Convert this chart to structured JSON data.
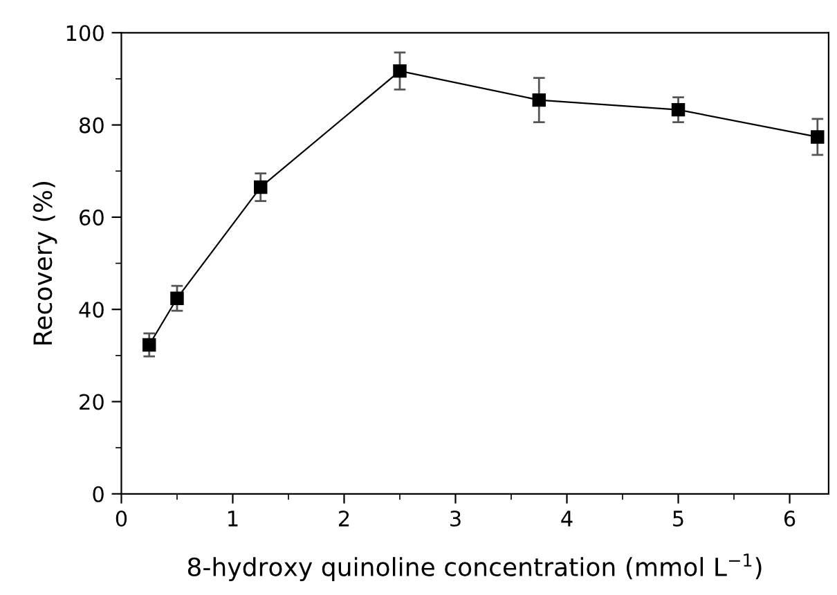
{
  "chart_data": {
    "type": "line",
    "xlabel": "8-hydroxy quinoline concentration (mmol L$^{−1}$)",
    "ylabel": "Recovery (%)",
    "x": [
      0.25,
      0.5,
      1.25,
      2.5,
      3.75,
      5,
      6.25
    ],
    "series": [
      {
        "color": "#000000",
        "values": [
          32.3,
          42.4,
          66.5,
          91.7,
          85.4,
          83.3,
          77.4
        ],
        "errors": [
          2.5,
          2.7,
          3,
          4,
          4.8,
          2.7,
          3.9
        ]
      }
    ],
    "xlim": [
      0,
      6.35
    ],
    "xticks": [
      0,
      1,
      2,
      3,
      4,
      5,
      6
    ],
    "ylim": [
      0,
      100
    ],
    "yticks": [
      0,
      20,
      40,
      60,
      80,
      100
    ],
    "marker": "square",
    "line_style": "solid",
    "grid": false,
    "legend": false
  }
}
